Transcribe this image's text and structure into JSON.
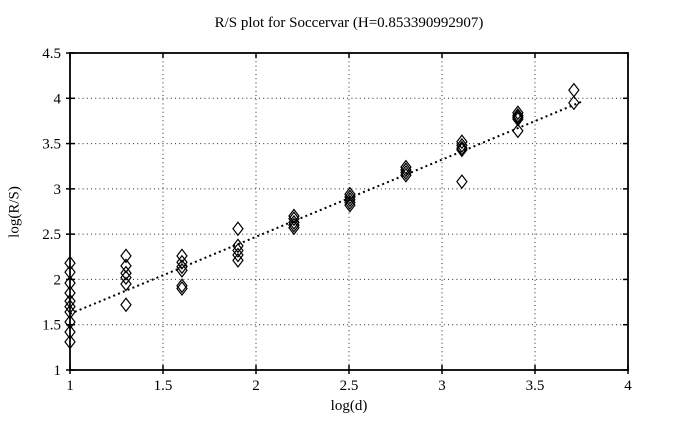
{
  "colors": {
    "foreground": "#000000",
    "background": "#ffffff"
  },
  "chart_data": {
    "type": "scatter",
    "title": "R/S plot for Soccervar (H=0.853390992907)",
    "xlabel": "log(d)",
    "ylabel": "log(R/S)",
    "hurst_exponent": "0.853390992907",
    "xlim": [
      1,
      4
    ],
    "ylim": [
      1,
      4.5
    ],
    "x_ticks": [
      1,
      1.5,
      2,
      2.5,
      3,
      3.5,
      4
    ],
    "y_ticks": [
      1,
      1.5,
      2,
      2.5,
      3,
      3.5,
      4,
      4.5
    ],
    "grid": "dotted",
    "legend": "none",
    "marker": "open-diamond",
    "series": [
      {
        "name": "rescaled-range-points",
        "groups": [
          {
            "x": 1.0,
            "y": [
              2.18,
              2.08,
              1.96,
              1.85,
              1.76,
              1.7,
              1.64,
              1.53,
              1.42,
              1.31
            ]
          },
          {
            "x": 1.301,
            "y": [
              2.26,
              2.15,
              2.07,
              2.02,
              1.95,
              1.72
            ]
          },
          {
            "x": 1.602,
            "y": [
              2.26,
              2.19,
              2.14,
              2.1,
              1.93,
              1.9
            ]
          },
          {
            "x": 1.903,
            "y": [
              2.56,
              2.37,
              2.32,
              2.27,
              2.21
            ]
          },
          {
            "x": 2.204,
            "y": [
              2.7,
              2.67,
              2.63,
              2.6,
              2.57
            ]
          },
          {
            "x": 2.505,
            "y": [
              2.94,
              2.91,
              2.88,
              2.85,
              2.82
            ]
          },
          {
            "x": 2.806,
            "y": [
              3.24,
              3.21,
              3.18,
              3.15
            ]
          },
          {
            "x": 3.107,
            "y": [
              3.52,
              3.48,
              3.45,
              3.43,
              3.08
            ]
          },
          {
            "x": 3.408,
            "y": [
              3.84,
              3.81,
              3.79,
              3.77,
              3.64
            ]
          },
          {
            "x": 3.709,
            "y": [
              4.09,
              3.95
            ]
          }
        ]
      }
    ],
    "trend_line": {
      "style": "dotted",
      "slope_H": 0.853390992907,
      "x1": 1.0,
      "y1": 1.62,
      "x2": 3.76,
      "y2": 3.97
    }
  }
}
